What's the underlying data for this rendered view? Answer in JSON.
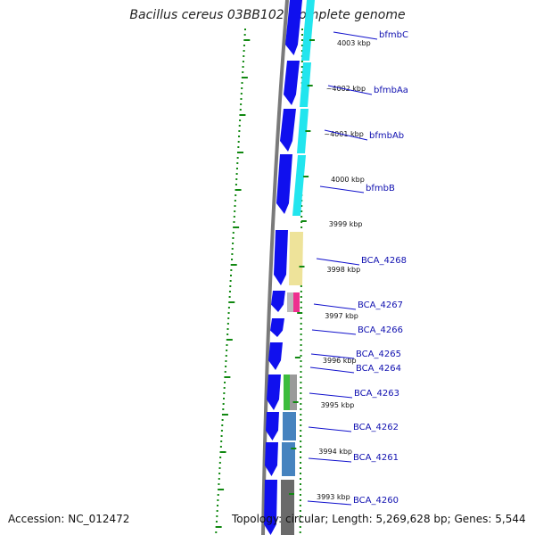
{
  "title": "Bacillus cereus 03BB102, complete genome",
  "footer": {
    "accession": "Accession: NC_012472",
    "summary": "Topology: circular; Length: 5,269,628 bp; Genes: 5,544"
  },
  "colors": {
    "forward_gene": "#1010ee",
    "backbone": "#7a7a7a",
    "gc_marks": "#118811",
    "label_line": "#1010cc",
    "cog_cyan": "#22e5ee",
    "cog_yellow": "#eee39a",
    "cog_pink": "#ee2f8f",
    "cog_green": "#3cbc3c",
    "cog_steelblue": "#4683bf",
    "cog_grey": "#6a6a6a"
  },
  "kbp_ticks": [
    "4003 kbp",
    "~4002 kbp",
    "~4001 kbp",
    "4000 kbp",
    "3999 kbp",
    "3998 kbp",
    "3997 kbp",
    "3996 kbp",
    "3995 kbp",
    "3994 kbp",
    "3993 kbp"
  ],
  "gene_labels": [
    "bfmbC",
    "bfmbAa",
    "bfmbAb",
    "bfmbB",
    "BCA_4268",
    "BCA_4267",
    "BCA_4266",
    "BCA_4265",
    "BCA_4264",
    "BCA_4263",
    "BCA_4262",
    "BCA_4261",
    "BCA_4260"
  ]
}
